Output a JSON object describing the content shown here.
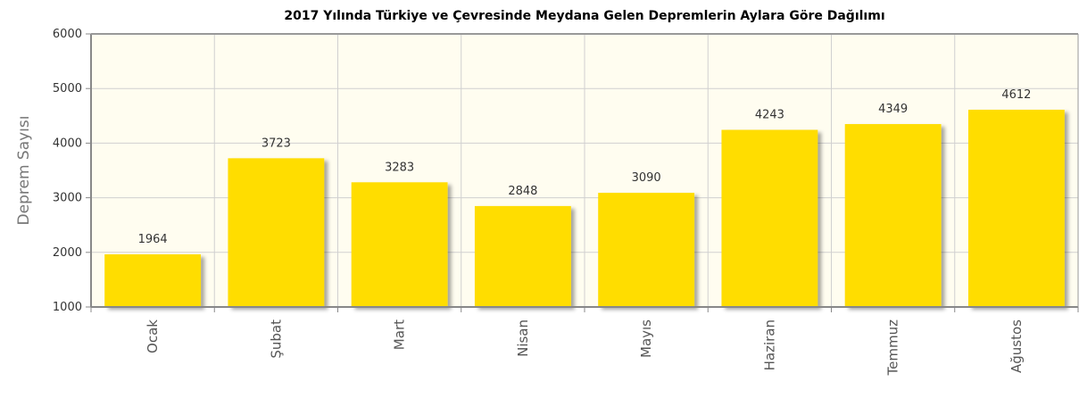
{
  "chart_data": {
    "type": "bar",
    "title": "2017 Yılında Türkiye ve Çevresinde Meydana Gelen Depremlerin Aylara Göre Dağılımı",
    "xlabel": "",
    "ylabel": "Deprem Sayısı",
    "categories": [
      "Ocak",
      "Şubat",
      "Mart",
      "Nisan",
      "Mayıs",
      "Haziran",
      "Temmuz",
      "Ağustos"
    ],
    "values": [
      1964,
      3723,
      3283,
      2848,
      3090,
      4243,
      4349,
      4612
    ],
    "ylim": [
      1000,
      6000
    ],
    "yticks": [
      1000,
      2000,
      3000,
      4000,
      5000,
      6000
    ],
    "grid": true,
    "bar_color": "#FFDD00",
    "plot_background": "#FFFDF0"
  }
}
